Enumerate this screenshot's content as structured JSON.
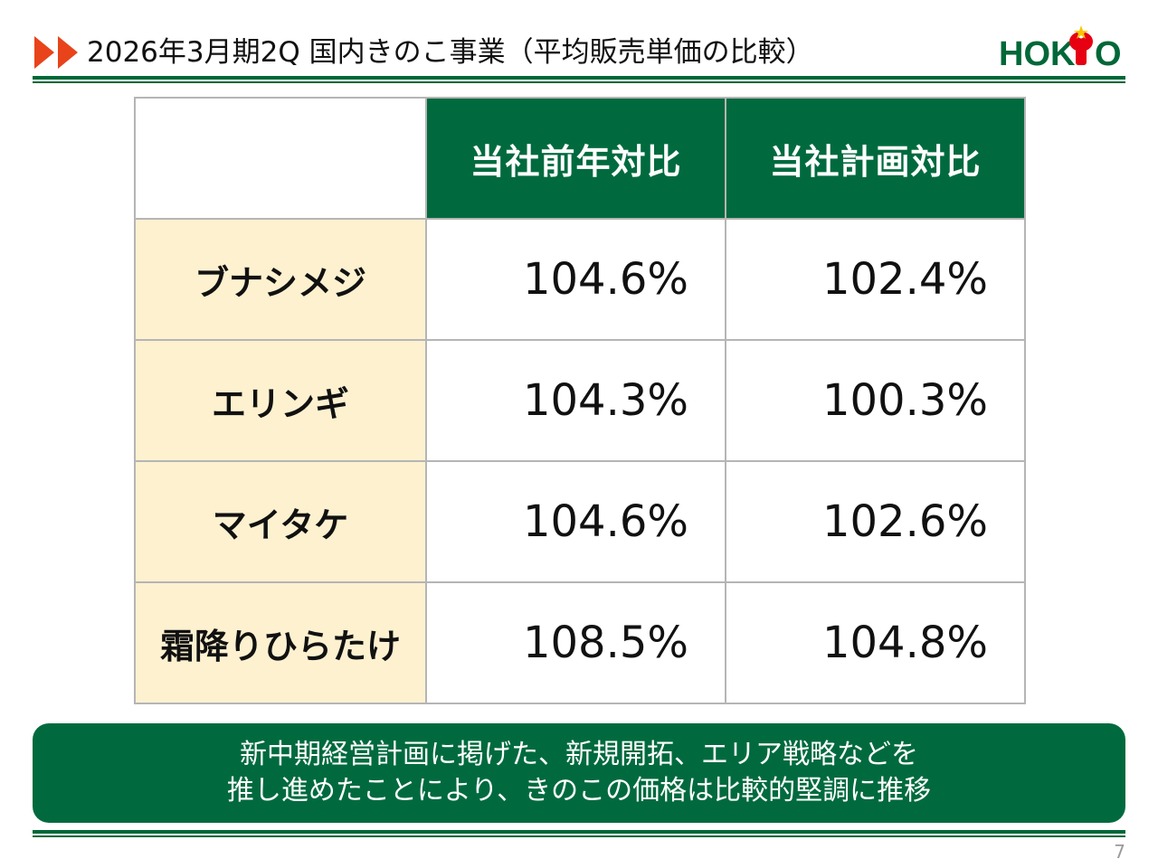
{
  "header": {
    "title": "2026年3月期2Q 国内きのこ事業（平均販売単価の比較）",
    "logo": {
      "text_left": "HOK",
      "text_right": "O",
      "brand_color": "#006838",
      "accent_color": "#e60012"
    },
    "arrow_color": "#e8431b"
  },
  "table": {
    "columns": [
      "当社前年対比",
      "当社計画対比"
    ],
    "rows": [
      {
        "label": "ブナシメジ",
        "values": [
          "104.6%",
          "102.4%"
        ]
      },
      {
        "label": "エリンギ",
        "values": [
          "104.3%",
          "100.3%"
        ]
      },
      {
        "label": "マイタケ",
        "values": [
          "104.6%",
          "102.6%"
        ]
      },
      {
        "label": "霜降りひらたけ",
        "values": [
          "108.5%",
          "104.8%"
        ]
      }
    ],
    "header_color": "#006a3e",
    "row_header_color": "#fdf1d0"
  },
  "summary": {
    "line1": "新中期経営計画に掲げた、新規開拓、エリア戦略などを",
    "line2": "推し進めたことにより、きのこの価格は比較的堅調に推移"
  },
  "page_number": "7"
}
